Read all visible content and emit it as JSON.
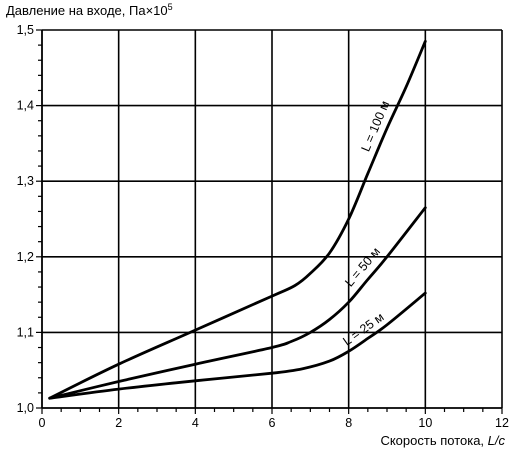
{
  "chart_data": {
    "type": "line",
    "title": "Давление на входе, Па×10",
    "title_exponent": "5",
    "xlabel": "Скорость потока, ",
    "xlabel_unit": "L/c",
    "xlim": [
      0,
      12
    ],
    "ylim": [
      1.0,
      1.5
    ],
    "x_ticks": [
      "0",
      "2",
      "4",
      "6",
      "8",
      "10",
      "12"
    ],
    "y_ticks": [
      "1,0",
      "1,1",
      "1,2",
      "1,3",
      "1,4",
      "1,5"
    ],
    "grid": true,
    "series": [
      {
        "name": "L = 25 м",
        "x": [
          0.2,
          2,
          4,
          6,
          6.8,
          7.5,
          8,
          8.5,
          9,
          10
        ],
        "y": [
          1.013,
          1.025,
          1.036,
          1.046,
          1.052,
          1.062,
          1.075,
          1.092,
          1.11,
          1.152
        ]
      },
      {
        "name": "L = 50 м",
        "x": [
          0.2,
          2,
          4,
          6,
          6.5,
          7,
          7.5,
          8,
          8.5,
          9,
          10
        ],
        "y": [
          1.013,
          1.035,
          1.058,
          1.08,
          1.088,
          1.1,
          1.117,
          1.14,
          1.17,
          1.2,
          1.265
        ]
      },
      {
        "name": "L = 100 м",
        "x": [
          0.2,
          2,
          4,
          6,
          6.6,
          7,
          7.5,
          8,
          8.5,
          9,
          9.5,
          10
        ],
        "y": [
          1.013,
          1.058,
          1.103,
          1.148,
          1.162,
          1.178,
          1.205,
          1.25,
          1.31,
          1.37,
          1.425,
          1.485
        ]
      }
    ]
  }
}
